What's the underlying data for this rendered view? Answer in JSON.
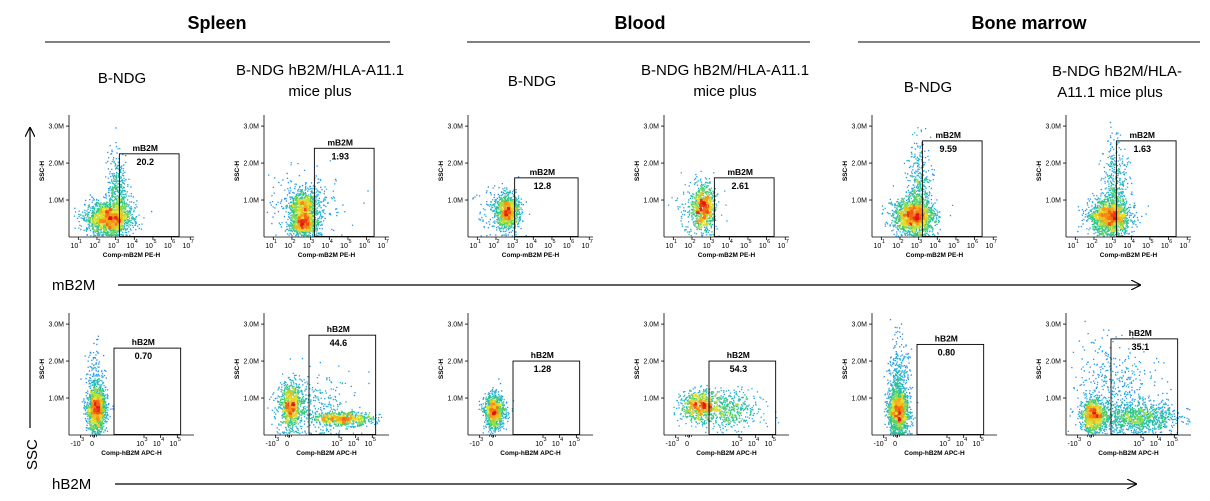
{
  "chart_data": {
    "type": "scatter",
    "groups": [
      "Spleen",
      "Blood",
      "Bone marrow"
    ],
    "arrows": {
      "mb2m_label": "mB2M",
      "hb2m_label": "hB2M",
      "ssc_label": "SSC"
    },
    "y_axis": {
      "label": "SSC-H",
      "ticks": [
        "1.0M",
        "2.0M",
        "3.0M"
      ],
      "range": [
        0,
        3300000
      ]
    },
    "rows": [
      {
        "marker": "mB2M",
        "xlabel": "Comp-mB2M PE-H",
        "x_range_log10": [
          0.5,
          7.2
        ],
        "x_ticks": [
          {
            "base": "10",
            "exp": "1",
            "value": 1
          },
          {
            "base": "10",
            "exp": "2",
            "value": 2
          },
          {
            "base": "10",
            "exp": "3",
            "value": 3
          },
          {
            "base": "10",
            "exp": "4",
            "value": 4
          },
          {
            "base": "10",
            "exp": "5",
            "value": 5
          },
          {
            "base": "10",
            "exp": "6",
            "value": 6
          },
          {
            "base": "10",
            "exp": "7",
            "value": 7
          }
        ],
        "gate_label": "mB2M",
        "panels": [
          {
            "group": "Spleen",
            "sample": "B-NDG",
            "gate_percent": "20.2",
            "gate_x": [
              3.2,
              6.4
            ],
            "gate_ymax": 2250000,
            "clusters": [
              {
                "x": 2.6,
                "y": 520000,
                "sx": 0.6,
                "sy": 230000,
                "n": 1700
              },
              {
                "x": 3.1,
                "y": 1150000,
                "sx": 0.3,
                "sy": 550000,
                "n": 400
              }
            ]
          },
          {
            "group": "Spleen",
            "sample": "B-NDG hB2M/HLA-A11.1 mice plus",
            "gate_percent": "1.93",
            "gate_x": [
              3.2,
              6.4
            ],
            "gate_ymax": 2400000,
            "clusters": [
              {
                "x": 2.6,
                "y": 350000,
                "sx": 0.35,
                "sy": 140000,
                "n": 800
              },
              {
                "x": 2.6,
                "y": 820000,
                "sx": 0.35,
                "sy": 200000,
                "n": 800
              },
              {
                "x": 2.6,
                "y": 900000,
                "sx": 0.9,
                "sy": 450000,
                "n": 350
              }
            ]
          },
          {
            "group": "Blood",
            "sample": "B-NDG",
            "gate_percent": "12.8",
            "gate_x": [
              3.0,
              6.4
            ],
            "gate_ymax": 1600000,
            "clusters": [
              {
                "x": 2.6,
                "y": 700000,
                "sx": 0.3,
                "sy": 220000,
                "n": 1000
              },
              {
                "x": 2.2,
                "y": 700000,
                "sx": 0.6,
                "sy": 330000,
                "n": 220
              }
            ]
          },
          {
            "group": "Blood",
            "sample": "B-NDG hB2M/HLA-A11.1 mice plus",
            "gate_percent": "2.61",
            "gate_x": [
              3.2,
              6.4
            ],
            "gate_ymax": 1600000,
            "clusters": [
              {
                "x": 2.6,
                "y": 800000,
                "sx": 0.3,
                "sy": 280000,
                "n": 800
              },
              {
                "x": 2.3,
                "y": 800000,
                "sx": 0.6,
                "sy": 380000,
                "n": 220
              }
            ]
          },
          {
            "group": "Bone marrow",
            "sample": "B-NDG",
            "gate_percent": "9.59",
            "gate_x": [
              3.2,
              6.4
            ],
            "gate_ymax": 2600000,
            "clusters": [
              {
                "x": 2.7,
                "y": 580000,
                "sx": 0.55,
                "sy": 230000,
                "n": 1600
              },
              {
                "x": 3.0,
                "y": 1300000,
                "sx": 0.3,
                "sy": 650000,
                "n": 450
              }
            ]
          },
          {
            "group": "Bone marrow",
            "sample": "B-NDG hB2M/HLA-A11.1 mice plus",
            "gate_percent": "1.63",
            "gate_x": [
              3.2,
              6.4
            ],
            "gate_ymax": 2600000,
            "clusters": [
              {
                "x": 2.8,
                "y": 560000,
                "sx": 0.55,
                "sy": 230000,
                "n": 1600
              },
              {
                "x": 3.1,
                "y": 1300000,
                "sx": 0.35,
                "sy": 650000,
                "n": 450
              }
            ]
          }
        ]
      },
      {
        "marker": "hB2M",
        "xlabel": "Comp-hB2M APC-H",
        "x_range_log10": [
          -1.5,
          6.0
        ],
        "x_ticks": [
          {
            "base": "-10",
            "exp": "3",
            "value": -0.8
          },
          {
            "base": "0",
            "exp": "",
            "value": 0
          },
          {
            "base": "10",
            "exp": "3",
            "value": 3
          },
          {
            "base": "10",
            "exp": "4",
            "value": 4
          },
          {
            "base": "10",
            "exp": "5",
            "value": 5
          }
        ],
        "gate_label": "hB2M",
        "panels": [
          {
            "group": "Spleen",
            "sample": "B-NDG",
            "gate_percent": "0.70",
            "gate_x": [
              1.2,
              5.2
            ],
            "gate_ymax": 2350000,
            "clusters": [
              {
                "x": 0.1,
                "y": 700000,
                "sx": 0.28,
                "sy": 280000,
                "n": 1500
              },
              {
                "x": 0.1,
                "y": 1400000,
                "sx": 0.3,
                "sy": 500000,
                "n": 200
              }
            ]
          },
          {
            "group": "Spleen",
            "sample": "B-NDG hB2M/HLA-A11.1 mice plus",
            "gate_percent": "44.6",
            "gate_x": [
              1.2,
              5.2
            ],
            "gate_ymax": 2700000,
            "clusters": [
              {
                "x": 0.1,
                "y": 800000,
                "sx": 0.35,
                "sy": 300000,
                "n": 900
              },
              {
                "x": 3.2,
                "y": 450000,
                "sx": 0.9,
                "sy": 90000,
                "n": 700
              },
              {
                "x": 1.5,
                "y": 800000,
                "sx": 1.3,
                "sy": 450000,
                "n": 300
              }
            ]
          },
          {
            "group": "Blood",
            "sample": "B-NDG",
            "gate_percent": "1.28",
            "gate_x": [
              1.2,
              5.2
            ],
            "gate_ymax": 2000000,
            "clusters": [
              {
                "x": 0.05,
                "y": 650000,
                "sx": 0.3,
                "sy": 230000,
                "n": 1100
              }
            ]
          },
          {
            "group": "Blood",
            "sample": "B-NDG hB2M/HLA-A11.1 mice plus",
            "gate_percent": "54.3",
            "gate_x": [
              1.2,
              5.2
            ],
            "gate_ymax": 2000000,
            "clusters": [
              {
                "x": 0.6,
                "y": 800000,
                "sx": 0.55,
                "sy": 200000,
                "n": 700
              },
              {
                "x": 2.3,
                "y": 700000,
                "sx": 1.0,
                "sy": 260000,
                "n": 500
              }
            ]
          },
          {
            "group": "Bone marrow",
            "sample": "B-NDG",
            "gate_percent": "0.80",
            "gate_x": [
              1.2,
              5.2
            ],
            "gate_ymax": 2450000,
            "clusters": [
              {
                "x": 0.05,
                "y": 650000,
                "sx": 0.3,
                "sy": 300000,
                "n": 1500
              },
              {
                "x": 0.05,
                "y": 1500000,
                "sx": 0.3,
                "sy": 550000,
                "n": 350
              }
            ]
          },
          {
            "group": "Bone marrow",
            "sample": "B-NDG hB2M/HLA-A11.1 mice plus",
            "gate_percent": "35.1",
            "gate_x": [
              1.2,
              5.2
            ],
            "gate_ymax": 2600000,
            "clusters": [
              {
                "x": 0.1,
                "y": 550000,
                "sx": 0.35,
                "sy": 220000,
                "n": 1000
              },
              {
                "x": 2.7,
                "y": 480000,
                "sx": 1.3,
                "sy": 200000,
                "n": 1000
              },
              {
                "x": 1.5,
                "y": 1300000,
                "sx": 1.2,
                "sy": 600000,
                "n": 400
              }
            ]
          }
        ]
      }
    ]
  }
}
